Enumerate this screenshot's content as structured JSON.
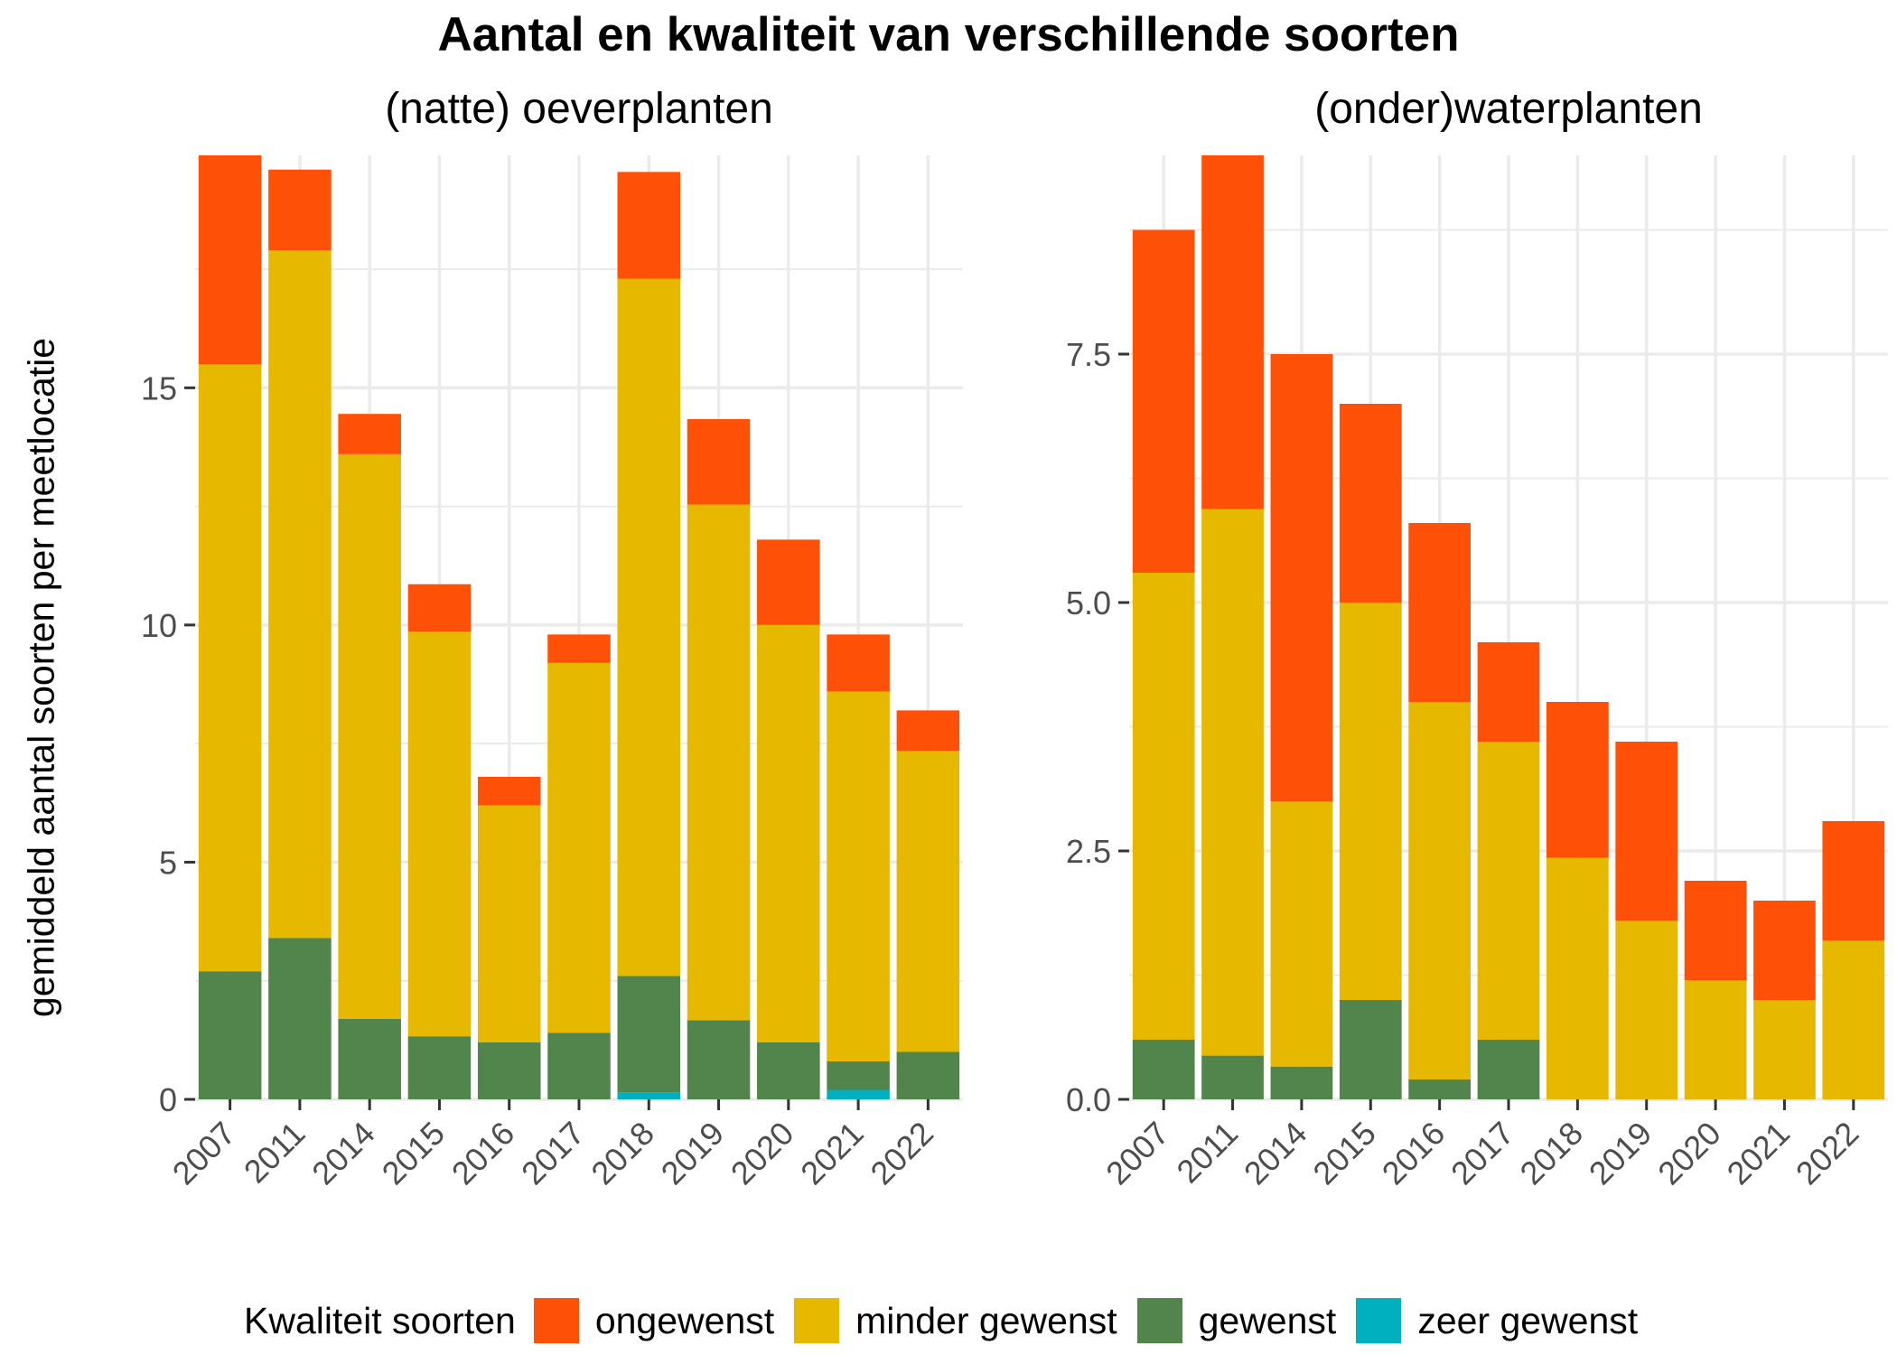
{
  "title": "Aantal en kwaliteit van verschillende soorten",
  "ylabel": "gemiddeld aantal soorten per meetlocatie",
  "legend": {
    "title": "Kwaliteit soorten",
    "items": [
      {
        "label": "ongewenst",
        "color": "#FF5008"
      },
      {
        "label": "minder gewenst",
        "color": "#E6B800"
      },
      {
        "label": "gewenst",
        "color": "#52854C"
      },
      {
        "label": "zeer gewenst",
        "color": "#00B0BE"
      }
    ]
  },
  "chart_data": [
    {
      "type": "bar",
      "stacked": true,
      "title": "(natte) oeverplanten",
      "ylabel": "gemiddeld aantal soorten per meetlocatie",
      "categories": [
        "2007",
        "2011",
        "2014",
        "2015",
        "2016",
        "2017",
        "2018",
        "2019",
        "2020",
        "2021",
        "2022"
      ],
      "ylim": [
        0,
        19.9
      ],
      "yticks": [
        0,
        5,
        10,
        15
      ],
      "ytick_labels": [
        "0",
        "5",
        "10",
        "15"
      ],
      "series": [
        {
          "name": "zeer gewenst",
          "color": "#00B0BE",
          "values": [
            0,
            0,
            0,
            0,
            0,
            0,
            0.15,
            0,
            0,
            0.2,
            0
          ]
        },
        {
          "name": "gewenst",
          "color": "#52854C",
          "values": [
            2.7,
            3.4,
            1.7,
            1.33,
            1.2,
            1.4,
            2.45,
            1.67,
            1.2,
            0.6,
            1.0
          ]
        },
        {
          "name": "minder gewenst",
          "color": "#E6B800",
          "values": [
            12.8,
            14.5,
            11.9,
            8.53,
            5.0,
            7.8,
            14.7,
            10.87,
            8.8,
            7.8,
            6.35
          ]
        },
        {
          "name": "ongewenst",
          "color": "#FF5008",
          "values": [
            4.4,
            1.7,
            0.85,
            1.0,
            0.6,
            0.6,
            2.25,
            1.8,
            1.8,
            1.2,
            0.85
          ]
        }
      ],
      "grid": true
    },
    {
      "type": "bar",
      "stacked": true,
      "title": "(onder)waterplanten",
      "categories": [
        "2007",
        "2011",
        "2014",
        "2015",
        "2016",
        "2017",
        "2018",
        "2019",
        "2020",
        "2021",
        "2022"
      ],
      "ylim": [
        0,
        9.5
      ],
      "yticks": [
        0,
        2.5,
        5,
        7.5
      ],
      "ytick_labels": [
        "0.0",
        "2.5",
        "5.0",
        "7.5"
      ],
      "series": [
        {
          "name": "zeer gewenst",
          "color": "#00B0BE",
          "values": [
            0,
            0,
            0,
            0,
            0,
            0,
            0,
            0,
            0,
            0,
            0
          ]
        },
        {
          "name": "gewenst",
          "color": "#52854C",
          "values": [
            0.6,
            0.44,
            0.33,
            1.0,
            0.2,
            0.6,
            0,
            0,
            0,
            0,
            0
          ]
        },
        {
          "name": "minder gewenst",
          "color": "#E6B800",
          "values": [
            4.7,
            5.5,
            2.67,
            4.0,
            3.8,
            3.0,
            2.43,
            1.8,
            1.2,
            1.0,
            1.6
          ]
        },
        {
          "name": "ongewenst",
          "color": "#FF5008",
          "values": [
            3.45,
            3.56,
            4.5,
            2.0,
            1.8,
            1.0,
            1.57,
            1.8,
            1.0,
            1.0,
            1.2
          ]
        }
      ],
      "grid": true
    }
  ]
}
